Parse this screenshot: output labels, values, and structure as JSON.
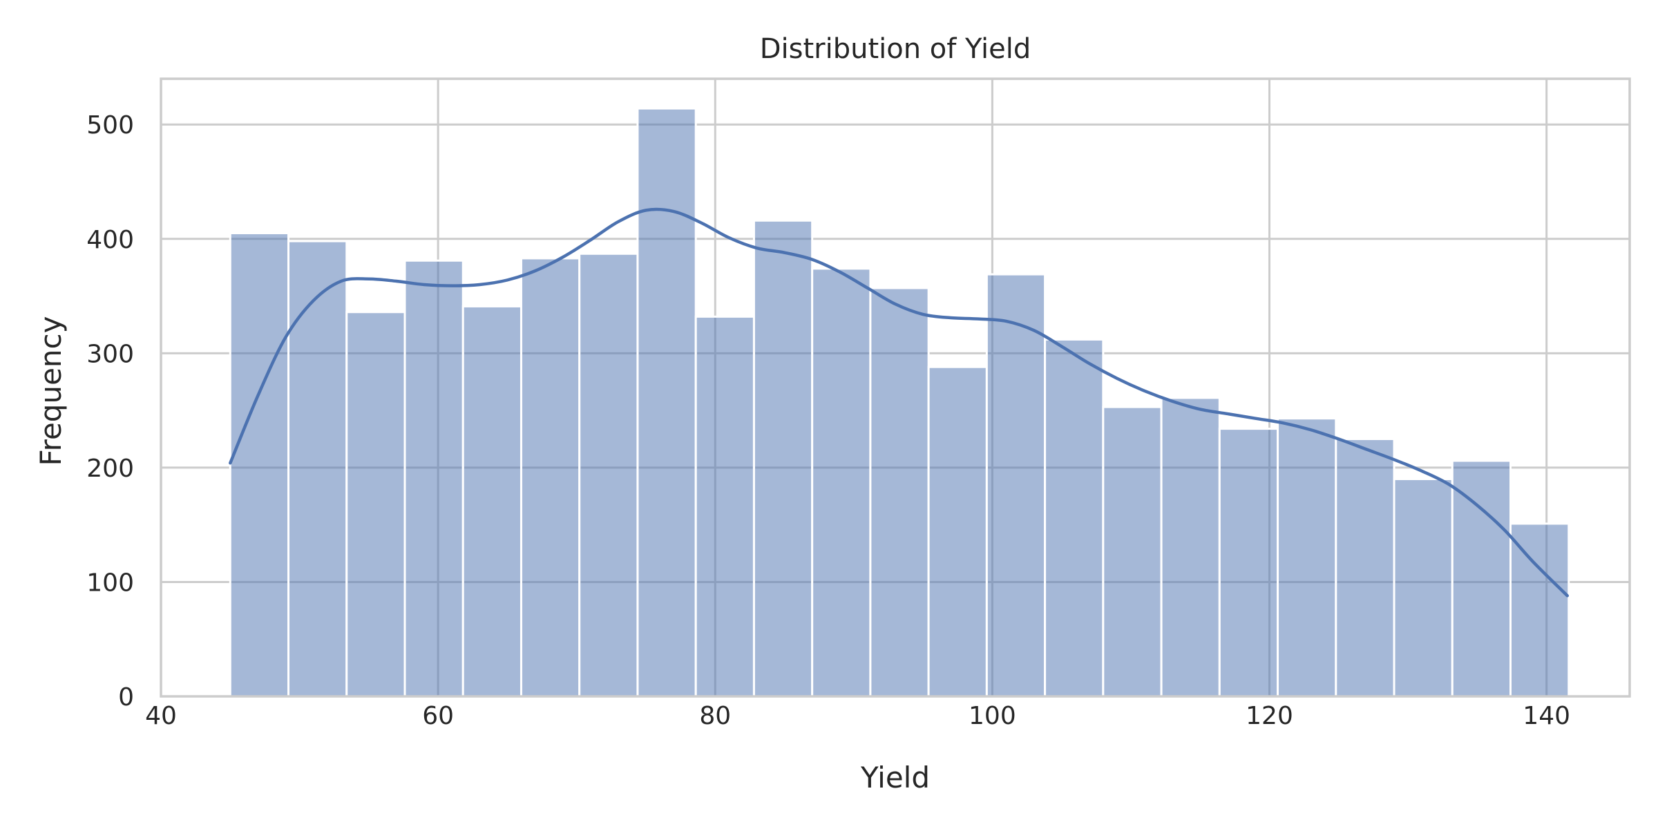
{
  "chart_data": {
    "type": "bar",
    "title": "Distribution of Yield",
    "xlabel": "Yield",
    "ylabel": "Frequency",
    "xlim": [
      40,
      146
    ],
    "ylim": [
      0,
      540
    ],
    "grid": true,
    "xticks": [
      40,
      60,
      80,
      100,
      120,
      140
    ],
    "yticks": [
      0,
      100,
      200,
      300,
      400,
      500
    ],
    "bins": [
      {
        "x0": 45.0,
        "x1": 49.2,
        "count": 405
      },
      {
        "x0": 49.2,
        "x1": 53.4,
        "count": 398
      },
      {
        "x0": 53.4,
        "x1": 57.6,
        "count": 336
      },
      {
        "x0": 57.6,
        "x1": 61.8,
        "count": 381
      },
      {
        "x0": 61.8,
        "x1": 66.0,
        "count": 341
      },
      {
        "x0": 66.0,
        "x1": 70.2,
        "count": 383
      },
      {
        "x0": 70.2,
        "x1": 74.4,
        "count": 387
      },
      {
        "x0": 74.4,
        "x1": 78.6,
        "count": 514
      },
      {
        "x0": 78.6,
        "x1": 82.8,
        "count": 332
      },
      {
        "x0": 82.8,
        "x1": 87.0,
        "count": 416
      },
      {
        "x0": 87.0,
        "x1": 91.2,
        "count": 374
      },
      {
        "x0": 91.2,
        "x1": 95.4,
        "count": 357
      },
      {
        "x0": 95.4,
        "x1": 99.6,
        "count": 288
      },
      {
        "x0": 99.6,
        "x1": 103.8,
        "count": 369
      },
      {
        "x0": 103.8,
        "x1": 108.0,
        "count": 312
      },
      {
        "x0": 108.0,
        "x1": 112.2,
        "count": 253
      },
      {
        "x0": 112.2,
        "x1": 116.4,
        "count": 261
      },
      {
        "x0": 116.4,
        "x1": 120.6,
        "count": 234
      },
      {
        "x0": 120.6,
        "x1": 124.8,
        "count": 243
      },
      {
        "x0": 124.8,
        "x1": 129.0,
        "count": 225
      },
      {
        "x0": 129.0,
        "x1": 133.2,
        "count": 190
      },
      {
        "x0": 133.2,
        "x1": 137.4,
        "count": 206
      },
      {
        "x0": 137.4,
        "x1": 141.6,
        "count": 151
      }
    ],
    "kde": [
      [
        45,
        204
      ],
      [
        47,
        263
      ],
      [
        49,
        314
      ],
      [
        51,
        346
      ],
      [
        53,
        363
      ],
      [
        55,
        365
      ],
      [
        57,
        363
      ],
      [
        59,
        360
      ],
      [
        61,
        359
      ],
      [
        63,
        360
      ],
      [
        65,
        364
      ],
      [
        67,
        372
      ],
      [
        69,
        384
      ],
      [
        71,
        399
      ],
      [
        73,
        415
      ],
      [
        75,
        425
      ],
      [
        77,
        424
      ],
      [
        79,
        414
      ],
      [
        81,
        401
      ],
      [
        83,
        392
      ],
      [
        85,
        388
      ],
      [
        87,
        382
      ],
      [
        89,
        371
      ],
      [
        91,
        357
      ],
      [
        93,
        343
      ],
      [
        95,
        334
      ],
      [
        97,
        331
      ],
      [
        99,
        330
      ],
      [
        101,
        328
      ],
      [
        103,
        320
      ],
      [
        105,
        306
      ],
      [
        107,
        291
      ],
      [
        109,
        278
      ],
      [
        111,
        267
      ],
      [
        113,
        258
      ],
      [
        115,
        251
      ],
      [
        117,
        247
      ],
      [
        119,
        243
      ],
      [
        121,
        239
      ],
      [
        123,
        233
      ],
      [
        125,
        225
      ],
      [
        127,
        216
      ],
      [
        129,
        207
      ],
      [
        131,
        197
      ],
      [
        133,
        185
      ],
      [
        135,
        167
      ],
      [
        137,
        145
      ],
      [
        139,
        118
      ],
      [
        141.5,
        88
      ]
    ],
    "colors": {
      "bar_fill": "#4c72b0",
      "bar_opacity": 0.5,
      "bar_edge": "#ffffff",
      "kde_line": "#4c72b0",
      "grid": "#cccccc",
      "spine": "#cccccc",
      "text": "#262626",
      "background": "#ffffff"
    }
  }
}
